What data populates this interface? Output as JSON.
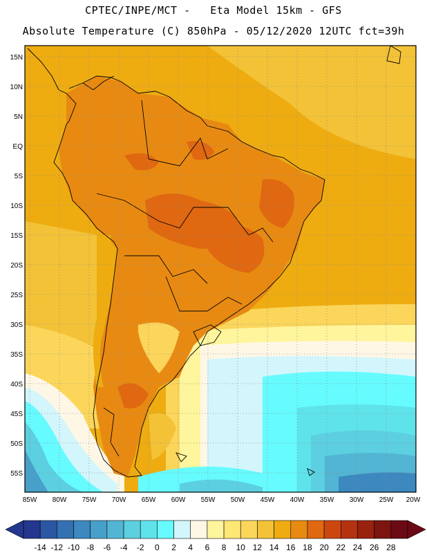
{
  "header": {
    "line1": "CPTEC/INPE/MCT -   Eta Model 15km - GFS",
    "line2": "Absolute Temperature (C) 850hPa - 05/12/2020 12UTC fct=39h"
  },
  "axes": {
    "lat_labels": [
      "15N",
      "10N",
      "5N",
      "EQ",
      "5S",
      "10S",
      "15S",
      "20S",
      "25S",
      "30S",
      "35S",
      "40S",
      "45S",
      "50S",
      "55S"
    ],
    "lon_labels": [
      "85W",
      "80W",
      "75W",
      "70W",
      "65W",
      "60W",
      "55W",
      "50W",
      "45W",
      "40W",
      "35W",
      "30W",
      "25W",
      "20W"
    ]
  },
  "colorbar": {
    "ticks": [
      "-14",
      "-12",
      "-10",
      "-8",
      "-6",
      "-4",
      "-2",
      "0",
      "2",
      "4",
      "6",
      "8",
      "10",
      "12",
      "14",
      "16",
      "18",
      "20",
      "22",
      "24",
      "26",
      "28"
    ],
    "colors": [
      "#23378f",
      "#2b56a3",
      "#3471b3",
      "#3c88bf",
      "#47a0c9",
      "#52b5d4",
      "#5ccfe0",
      "#5fe3eb",
      "#66fbff",
      "#d2f6fb",
      "#fff7e6",
      "#fff59c",
      "#ffe775",
      "#fbd65b",
      "#f3c237",
      "#eeac11",
      "#e88a12",
      "#e06811",
      "#cc4710",
      "#b43210",
      "#99220f",
      "#7c1510",
      "#6b0a14"
    ]
  }
}
